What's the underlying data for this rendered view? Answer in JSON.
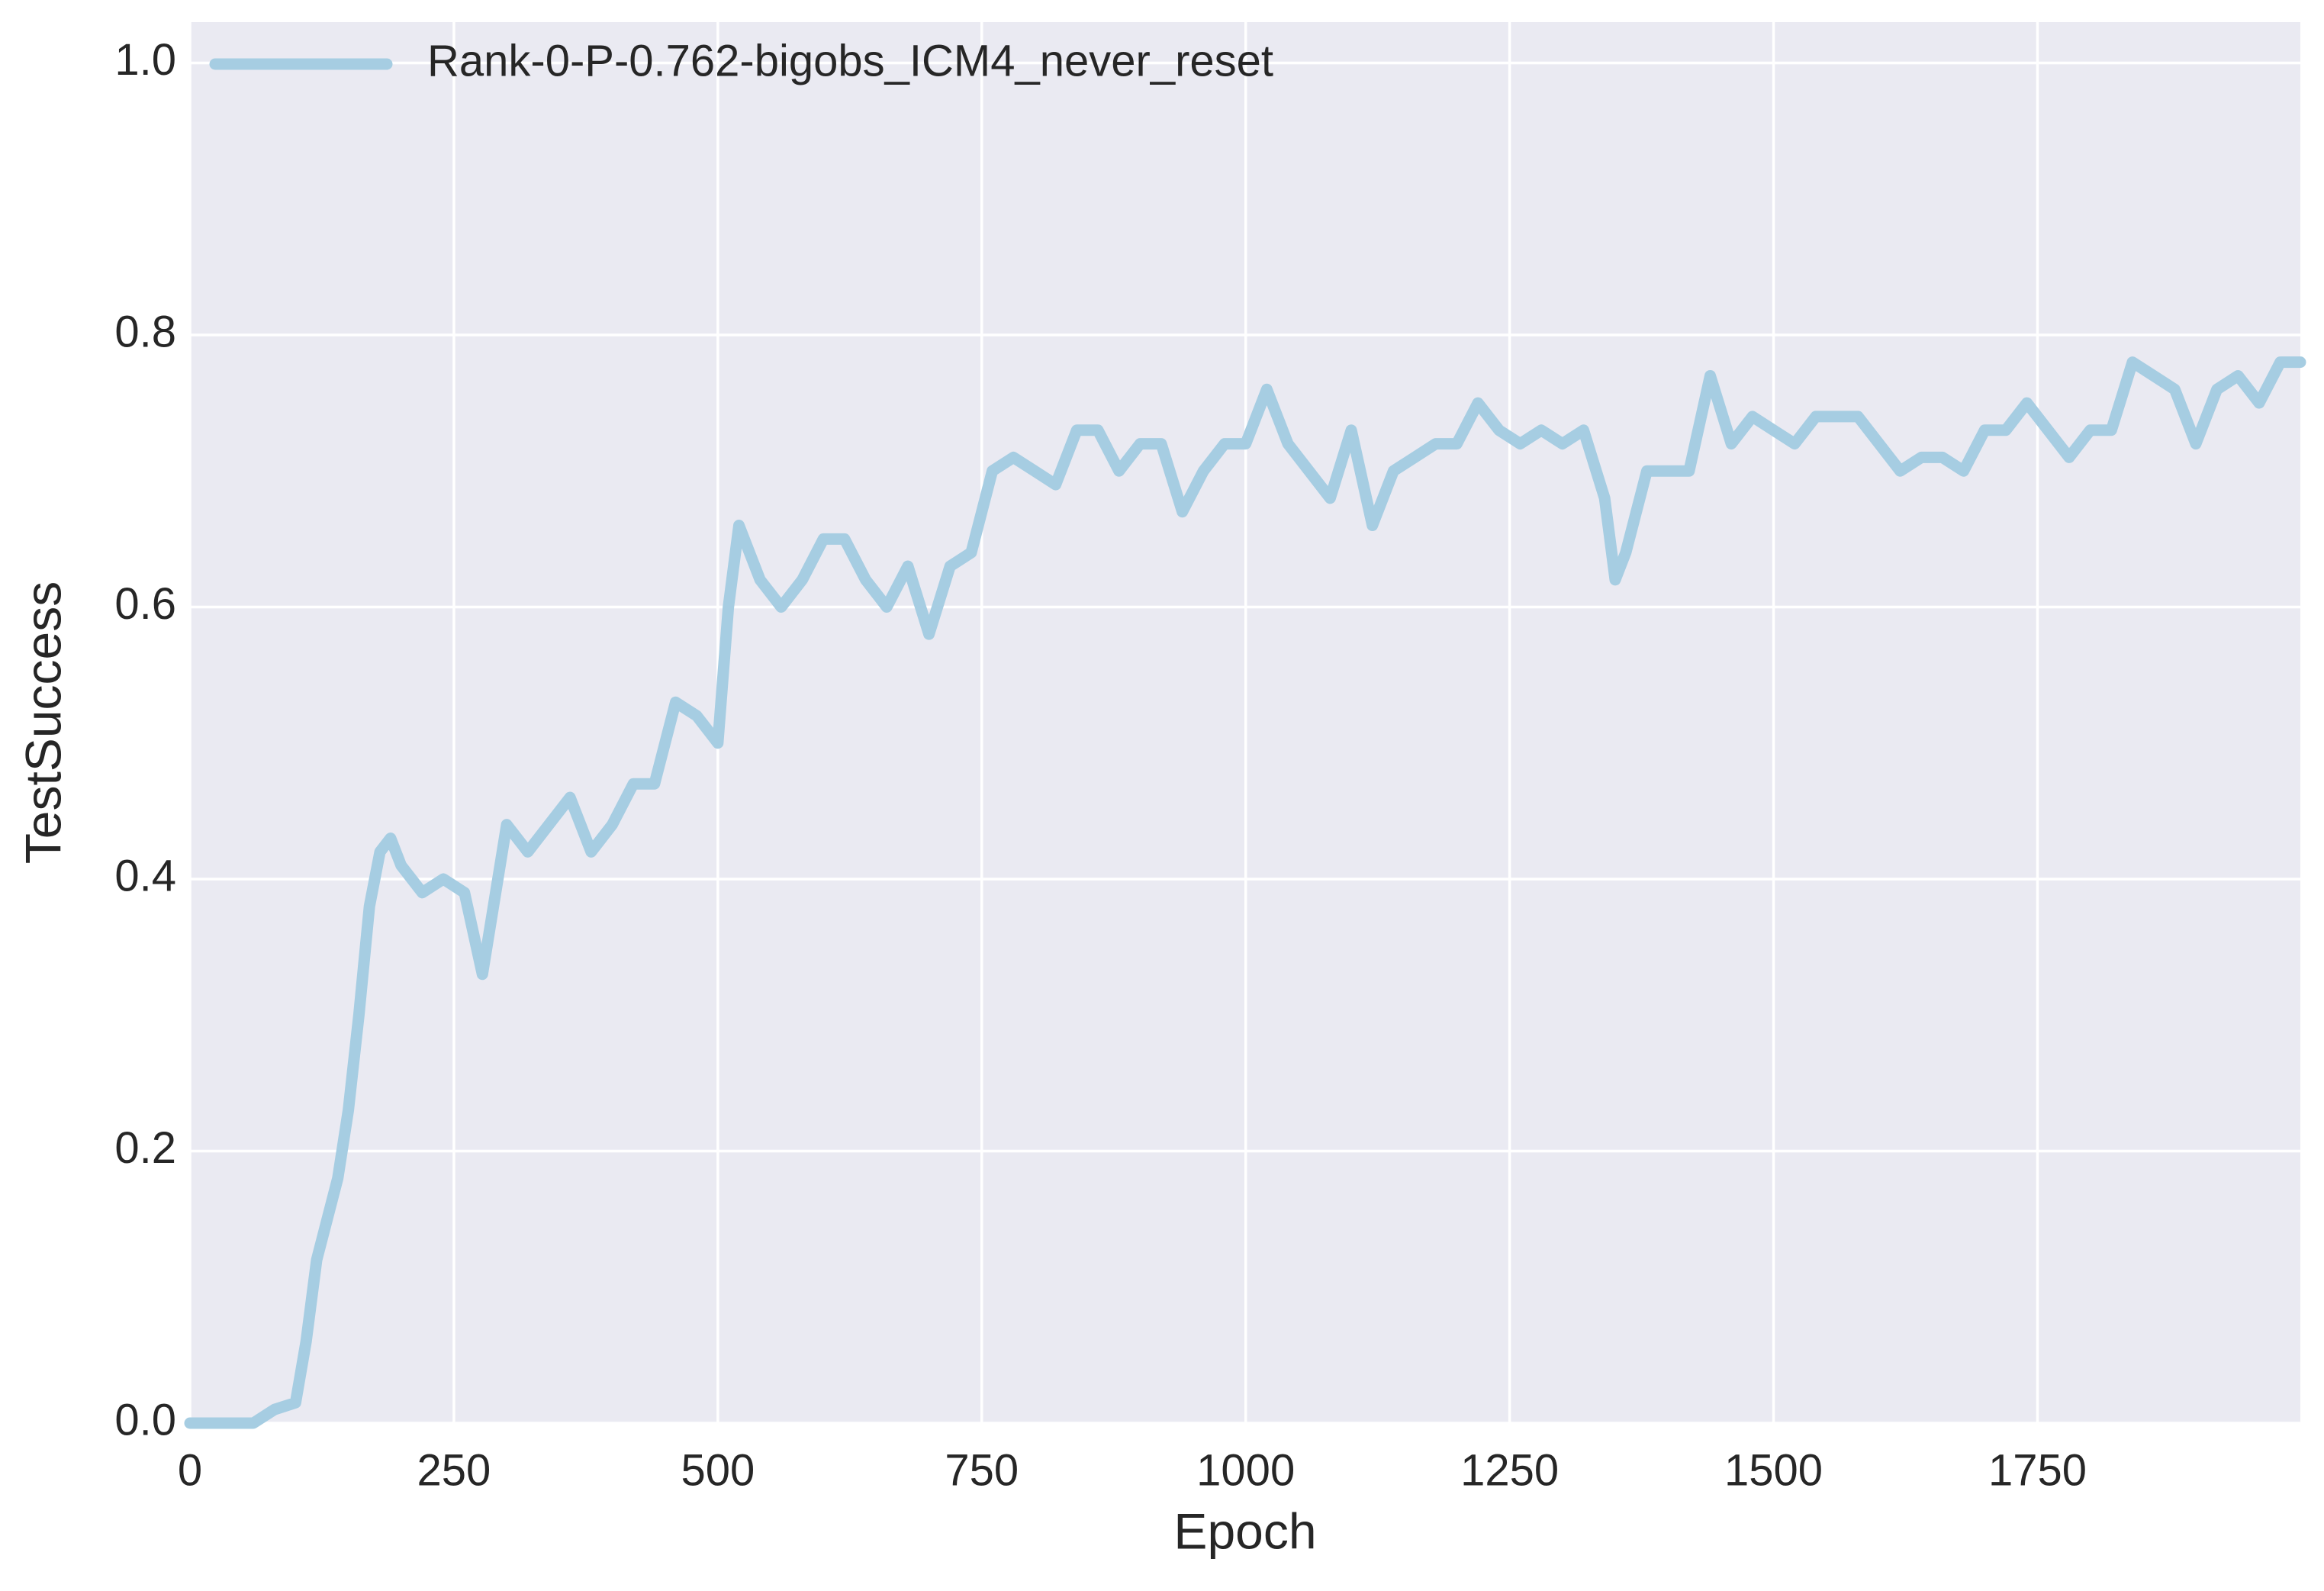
{
  "chart_data": {
    "type": "line",
    "xlabel": "Epoch",
    "ylabel": "TestSuccess",
    "x": [
      0,
      20,
      40,
      60,
      80,
      100,
      110,
      120,
      140,
      150,
      160,
      170,
      180,
      190,
      200,
      220,
      240,
      260,
      277,
      300,
      320,
      340,
      360,
      380,
      400,
      420,
      440,
      460,
      480,
      500,
      510,
      520,
      540,
      560,
      580,
      600,
      620,
      640,
      660,
      680,
      700,
      720,
      740,
      760,
      780,
      800,
      820,
      840,
      860,
      880,
      900,
      920,
      940,
      960,
      980,
      1000,
      1020,
      1040,
      1060,
      1080,
      1100,
      1120,
      1140,
      1160,
      1180,
      1200,
      1220,
      1240,
      1260,
      1280,
      1300,
      1320,
      1340,
      1350,
      1360,
      1380,
      1400,
      1420,
      1440,
      1460,
      1480,
      1500,
      1520,
      1540,
      1560,
      1580,
      1600,
      1620,
      1640,
      1660,
      1680,
      1700,
      1720,
      1740,
      1760,
      1780,
      1800,
      1820,
      1840,
      1860,
      1880,
      1900,
      1920,
      1940,
      1960,
      1980,
      1999
    ],
    "series": [
      {
        "name": "Rank-0-P-0.762-bigobs_ICM4_never_reset",
        "color": "#a6cde2",
        "values": [
          0,
          0,
          0,
          0,
          0.01,
          0.015,
          0.06,
          0.12,
          0.18,
          0.23,
          0.3,
          0.38,
          0.42,
          0.43,
          0.41,
          0.39,
          0.4,
          0.39,
          0.33,
          0.44,
          0.42,
          0.44,
          0.46,
          0.42,
          0.44,
          0.47,
          0.47,
          0.53,
          0.52,
          0.5,
          0.6,
          0.66,
          0.62,
          0.6,
          0.62,
          0.65,
          0.65,
          0.62,
          0.6,
          0.63,
          0.58,
          0.63,
          0.64,
          0.7,
          0.71,
          0.7,
          0.69,
          0.73,
          0.73,
          0.7,
          0.72,
          0.72,
          0.67,
          0.7,
          0.72,
          0.72,
          0.76,
          0.72,
          0.7,
          0.68,
          0.73,
          0.66,
          0.7,
          0.71,
          0.72,
          0.72,
          0.75,
          0.73,
          0.72,
          0.73,
          0.72,
          0.73,
          0.68,
          0.62,
          0.64,
          0.7,
          0.7,
          0.7,
          0.77,
          0.72,
          0.74,
          0.73,
          0.72,
          0.74,
          0.74,
          0.74,
          0.72,
          0.7,
          0.71,
          0.71,
          0.7,
          0.73,
          0.73,
          0.75,
          0.73,
          0.71,
          0.73,
          0.73,
          0.78,
          0.77,
          0.76,
          0.72,
          0.76,
          0.77,
          0.75,
          0.78,
          0.78
        ]
      }
    ],
    "xlim": [
      0,
      1999
    ],
    "ylim": [
      0,
      1.03
    ],
    "xticks": [
      0,
      250,
      500,
      750,
      1000,
      1250,
      1500,
      1750
    ],
    "yticks": [
      {
        "value": 0,
        "label": "0.0"
      },
      {
        "value": 0.2,
        "label": "0.2"
      },
      {
        "value": 0.4,
        "label": "0.4"
      },
      {
        "value": 0.6,
        "label": "0.6"
      },
      {
        "value": 0.8,
        "label": "0.8"
      },
      {
        "value": 1,
        "label": "1.0"
      }
    ],
    "grid": true,
    "legend": "upper left"
  }
}
